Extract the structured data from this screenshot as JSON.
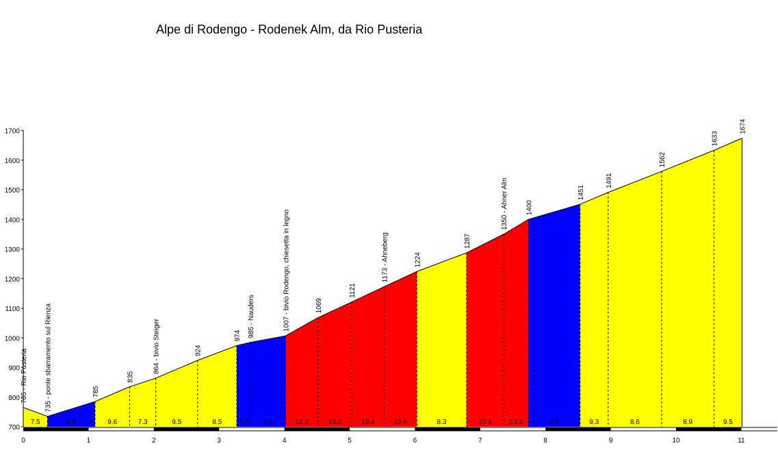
{
  "chart_data": {
    "type": "area",
    "title": "Alpe di Rodengo - Rodenek Alm, da Rio Pusteria",
    "xlabel": "",
    "ylabel": "",
    "xlim": [
      0,
      11.6
    ],
    "ylim": [
      700,
      1700
    ],
    "x_ticks": [
      "0",
      "1",
      "2",
      "3",
      "4",
      "5",
      "6",
      "7",
      "8",
      "9",
      "10",
      "11"
    ],
    "y_ticks": [
      "700",
      "800",
      "900",
      "1000",
      "1100",
      "1200",
      "1300",
      "1400",
      "1500",
      "1600",
      "1700"
    ],
    "colors": {
      "yellow": "#FFFF00",
      "blue": "#0000FF",
      "red": "#FF0000"
    },
    "profile": [
      {
        "x": 0.0,
        "y": 765
      },
      {
        "x": 0.37,
        "y": 735
      },
      {
        "x": 1.1,
        "y": 785
      },
      {
        "x": 1.63,
        "y": 835
      },
      {
        "x": 2.03,
        "y": 864
      },
      {
        "x": 2.67,
        "y": 924
      },
      {
        "x": 3.27,
        "y": 974
      },
      {
        "x": 3.48,
        "y": 985
      },
      {
        "x": 4.02,
        "y": 1007
      },
      {
        "x": 4.52,
        "y": 1069
      },
      {
        "x": 5.03,
        "y": 1121
      },
      {
        "x": 5.53,
        "y": 1173
      },
      {
        "x": 6.03,
        "y": 1224
      },
      {
        "x": 6.79,
        "y": 1287
      },
      {
        "x": 7.36,
        "y": 1350
      },
      {
        "x": 7.74,
        "y": 1400
      },
      {
        "x": 8.53,
        "y": 1451
      },
      {
        "x": 8.96,
        "y": 1491
      },
      {
        "x": 9.78,
        "y": 1562
      },
      {
        "x": 10.58,
        "y": 1633
      },
      {
        "x": 11.01,
        "y": 1674
      }
    ],
    "point_labels": [
      "765 - Rio Pusteria",
      "735 - ponte sbarramento sul Rienza",
      "785",
      "835",
      "864 - bivio Steiger",
      "924",
      "974",
      "985 - Nauders",
      "1007 - bivio Rodengo, chiesetta in legno",
      "1069",
      "1121",
      "1173 - Ahneberg",
      "1224",
      "1287",
      "1350 - Ahner Alm",
      "1400",
      "1451",
      "1491",
      "1562",
      "1633",
      "1674"
    ],
    "segments": [
      {
        "label": "7.5",
        "color": "yellow"
      },
      {
        "label": "8.8",
        "color": "blue"
      },
      {
        "label": "9.6",
        "color": "yellow"
      },
      {
        "label": "7.3",
        "color": "yellow"
      },
      {
        "label": "9.5",
        "color": "yellow"
      },
      {
        "label": "8.5",
        "color": "yellow"
      },
      {
        "label": "5.0",
        "color": "blue"
      },
      {
        "label": "4.0",
        "color": "blue"
      },
      {
        "label": "12.2",
        "color": "red"
      },
      {
        "label": "10.2",
        "color": "red"
      },
      {
        "label": "10.4",
        "color": "red"
      },
      {
        "label": "10.6",
        "color": "red"
      },
      {
        "label": "8.3",
        "color": "yellow"
      },
      {
        "label": "10.9",
        "color": "red"
      },
      {
        "label": "13.2",
        "color": "red"
      },
      {
        "label": "6.5",
        "color": "blue"
      },
      {
        "label": "9.3",
        "color": "yellow"
      },
      {
        "label": "8.6",
        "color": "yellow"
      },
      {
        "label": "8.9",
        "color": "yellow"
      },
      {
        "label": "9.5",
        "color": "yellow"
      }
    ]
  }
}
